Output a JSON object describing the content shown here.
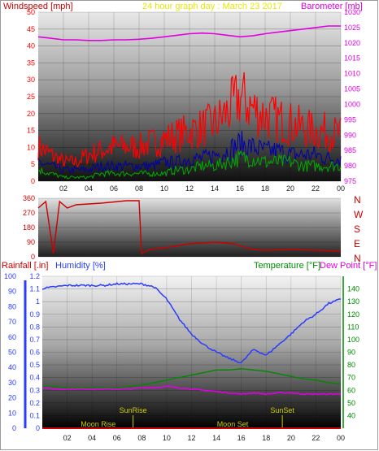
{
  "title": "24 hour graph day : March 23 2017",
  "colors": {
    "wind": "#ff0000",
    "gust_dark": "#0000aa",
    "wind_green": "#00aa00",
    "barometer": "#e000e0",
    "direction": "#cc0000",
    "rainfall": "#cc0000",
    "humidity": "#2a3cff",
    "temperature": "#008800",
    "dewpoint": "#e000e0",
    "title": "#e8e800",
    "sun_moon": "#cccc00"
  },
  "x_tick_labels": [
    "02",
    "04",
    "06",
    "08",
    "10",
    "12",
    "14",
    "16",
    "18",
    "20",
    "22",
    "00"
  ],
  "chart_data": [
    {
      "type": "line",
      "panel": "wind-barometer",
      "left_axis_label": "Windspeed [mph]",
      "right_axis_label": "Barometer [mb]",
      "left_ticks": [
        "0",
        "5",
        "10",
        "15",
        "20",
        "25",
        "30",
        "35",
        "40",
        "45",
        "50"
      ],
      "right_ticks": [
        "975",
        "980",
        "985",
        "990",
        "995",
        "1000",
        "1005",
        "1010",
        "1015",
        "1020",
        "1025",
        "1030"
      ],
      "ylim_left": [
        0,
        50
      ],
      "ylim_right": [
        975,
        1030
      ],
      "x_hours": [
        0,
        1,
        2,
        3,
        4,
        5,
        6,
        7,
        8,
        9,
        10,
        11,
        12,
        13,
        14,
        15,
        16,
        17,
        18,
        19,
        20,
        21,
        22,
        23,
        24
      ],
      "series": [
        {
          "values": [
            1022,
            1021.5,
            1021,
            1021,
            1020.8,
            1020.8,
            1021,
            1021,
            1021.2,
            1021.5,
            1022,
            1022.5,
            1023,
            1023.2,
            1023,
            1022.5,
            1022,
            1022.3,
            1023,
            1023.5,
            1024,
            1024.5,
            1025,
            1025.5,
            1025.5
          ]
        },
        {
          "values": [
            9,
            7,
            5,
            5,
            7,
            8,
            9,
            9,
            9,
            10,
            11,
            12,
            13,
            14,
            15,
            18,
            22,
            19,
            17,
            16,
            15,
            14,
            13,
            13,
            12
          ]
        },
        {
          "values": [
            5,
            4,
            3,
            3,
            3,
            4,
            4,
            4,
            4,
            4,
            5,
            5,
            6,
            6,
            7,
            8,
            10,
            9,
            8,
            8,
            7,
            7,
            7,
            6,
            6
          ]
        },
        {
          "values": [
            3,
            2,
            1,
            1,
            1,
            2,
            2,
            2,
            2,
            2,
            2,
            3,
            3,
            4,
            4,
            5,
            6,
            6,
            5,
            5,
            5,
            4,
            4,
            4,
            4
          ]
        }
      ]
    },
    {
      "type": "line",
      "panel": "wind-direction",
      "left_ticks": [
        "0",
        "90",
        "180",
        "270",
        "360"
      ],
      "right_ticks": [
        "N",
        "E",
        "S",
        "W",
        "N"
      ],
      "ylim": [
        0,
        360
      ],
      "series": [
        {
          "points": [
            [
              0,
              300
            ],
            [
              0.6,
              340
            ],
            [
              1.2,
              20
            ],
            [
              1.7,
              340
            ],
            [
              2.3,
              300
            ],
            [
              3,
              320
            ],
            [
              5,
              330
            ],
            [
              7,
              345
            ],
            [
              8,
              345
            ],
            [
              8.2,
              20
            ],
            [
              8.8,
              45
            ],
            [
              10,
              55
            ],
            [
              12,
              80
            ],
            [
              14,
              90
            ],
            [
              15.5,
              80
            ],
            [
              16,
              70
            ],
            [
              17,
              45
            ],
            [
              18,
              40
            ],
            [
              20,
              45
            ],
            [
              22,
              40
            ],
            [
              24,
              35
            ]
          ]
        }
      ]
    },
    {
      "type": "line",
      "panel": "humidity-temperature",
      "left_axis_label": "Rainfall [.in]",
      "left2_axis_label": "Humidity [%]",
      "right_axis_label": "Temperature [°F]",
      "right2_axis_label": "Dew Point [°F]",
      "rain_ticks": [
        "0",
        "0.1",
        "0.2",
        "0.3",
        "0.4",
        "0.5",
        "0.6",
        "0.7",
        "0.8",
        "0.9",
        "1",
        "1.1",
        "1.2"
      ],
      "humidity_ticks": [
        "0",
        "10",
        "20",
        "30",
        "40",
        "50",
        "60",
        "70",
        "80",
        "90",
        "100"
      ],
      "temperature_ticks": [
        "40",
        "50",
        "60",
        "70",
        "80",
        "90",
        "100",
        "110",
        "120",
        "130",
        "140"
      ],
      "ylim_rain": [
        0,
        1.2
      ],
      "ylim_humidity": [
        0,
        100
      ],
      "ylim_temperature": [
        30,
        150
      ],
      "series": [
        {
          "values": [
            92,
            93,
            94,
            94,
            94,
            94,
            95,
            95,
            95,
            93,
            85,
            72,
            62,
            55,
            50,
            46,
            43,
            52,
            48,
            55,
            62,
            70,
            75,
            82,
            85
          ]
        },
        {
          "values": [
            63,
            63,
            62,
            62,
            62,
            62,
            62,
            63,
            64,
            66,
            68,
            70,
            72,
            74,
            76,
            76,
            77,
            76,
            75,
            73,
            71,
            69,
            68,
            66,
            65
          ]
        },
        {
          "values": [
            62,
            61,
            61,
            61,
            61,
            61,
            61,
            61,
            62,
            62,
            63,
            62,
            61,
            60,
            59,
            58,
            57,
            58,
            57,
            58,
            58,
            57,
            57,
            57,
            57
          ]
        }
      ],
      "annotations": [
        {
          "label": "SunRise",
          "hour": 7.3
        },
        {
          "label": "Moon Rise",
          "hour": 4.5
        },
        {
          "label": "Moon Set",
          "hour": 15.3
        },
        {
          "label": "SunSet",
          "hour": 19.3
        }
      ]
    }
  ]
}
